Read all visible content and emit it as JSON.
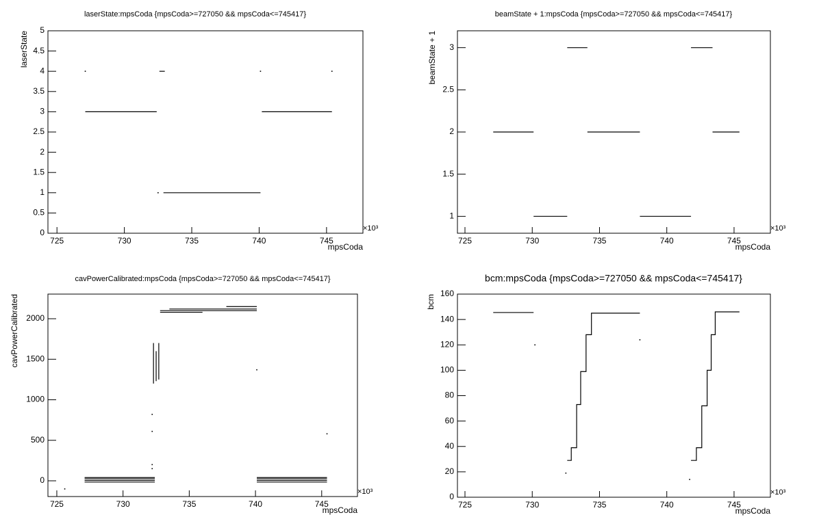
{
  "chart_data": [
    {
      "type": "line",
      "title": "laserState:mpsCoda {mpsCoda>=727050 && mpsCoda<=745417}",
      "x_label": "mpsCoda",
      "y_label": "laserState",
      "x_multiplier": "×10³",
      "color": "#000000",
      "x": [
        727.1,
        732.4,
        732.4,
        732.5,
        732.5,
        732.6,
        733.0,
        733.0,
        732.9,
        740.1,
        740.1,
        740.2,
        745.4,
        745.4,
        727.1,
        727.1,
        740.1,
        740.1,
        745.4
      ],
      "values": [
        3,
        3,
        null,
        1,
        null,
        4,
        4,
        null,
        1,
        1,
        null,
        3,
        3,
        null,
        4,
        null,
        4,
        null,
        4
      ],
      "xlim": [
        724.33,
        747.7
      ],
      "ylim": [
        0,
        5
      ],
      "xticks": [
        725,
        730,
        735,
        740,
        745
      ],
      "yticks": [
        0,
        0.5,
        1,
        1.5,
        2,
        2.5,
        3,
        3.5,
        4,
        4.5,
        5
      ]
    },
    {
      "type": "line",
      "title": "beamState + 1:mpsCoda {mpsCoda>=727050 && mpsCoda<=745417}",
      "x_label": "mpsCoda",
      "y_label": "beamState + 1",
      "x_multiplier": "×10³",
      "color": "#000000",
      "x": [
        727.1,
        730.1,
        730.1,
        730.1,
        732.6,
        732.6,
        732.6,
        734.1,
        734.1,
        734.1,
        738.0,
        738.0,
        738.0,
        741.8,
        741.8,
        741.8,
        743.4,
        743.4,
        743.4,
        745.4
      ],
      "values": [
        2,
        2,
        null,
        1,
        1,
        null,
        3,
        3,
        null,
        2,
        2,
        null,
        1,
        1,
        null,
        3,
        3,
        null,
        2,
        2
      ],
      "xlim": [
        724.44,
        747.7
      ],
      "ylim": [
        0.8,
        3.2
      ],
      "xticks": [
        725,
        730,
        735,
        740,
        745
      ],
      "yticks": [
        1,
        1.5,
        2,
        2.5,
        3
      ]
    },
    {
      "type": "line",
      "title": "cavPowerCalibrated:mpsCoda {mpsCoda>=727050 && mpsCoda<=745417}",
      "x_label": "mpsCoda",
      "y_label": "cavPowerCalibrated",
      "x_multiplier": "×10³",
      "color": "#000000",
      "x": [
        727.1,
        732.4,
        732.4,
        727.1,
        732.4,
        732.4,
        727.1,
        732.4,
        732.4,
        727.1,
        732.4,
        732.4,
        740.1,
        745.4,
        745.4,
        740.1,
        745.4,
        745.4,
        740.1,
        745.4,
        745.4,
        740.1,
        745.4,
        745.4,
        732.8,
        736,
        736,
        732.8,
        740.1,
        740.1,
        733.5,
        740.1,
        740.1,
        737.8,
        740.1,
        740.1,
        732.3,
        732.3,
        732.3,
        732.5,
        732.5,
        732.5,
        732.7,
        732.7,
        732.7,
        732.2,
        732.2,
        732.2,
        732.2,
        732.2,
        732.2,
        732.2,
        732.2,
        740.1,
        740.1,
        745.4,
        745.4,
        725.6
      ],
      "values": [
        -15,
        -15,
        null,
        5,
        5,
        null,
        25,
        25,
        null,
        40,
        40,
        null,
        -15,
        -15,
        null,
        5,
        5,
        null,
        25,
        25,
        null,
        40,
        40,
        null,
        2080,
        2080,
        null,
        2100,
        2100,
        null,
        2120,
        2120,
        null,
        2150,
        2150,
        null,
        1200,
        1700,
        null,
        1230,
        1600,
        null,
        1250,
        1700,
        null,
        820,
        null,
        610,
        null,
        200,
        null,
        150,
        null,
        1370,
        null,
        580,
        null,
        -100
      ],
      "xlim": [
        724.33,
        747.7
      ],
      "ylim": [
        -194,
        2304
      ],
      "xticks": [
        725,
        730,
        735,
        740,
        745
      ],
      "yticks": [
        0,
        500,
        1000,
        1500,
        2000
      ]
    },
    {
      "type": "line",
      "title": "bcm:mpsCoda {mpsCoda>=727050 && mpsCoda<=745417}",
      "x_label": "mpsCoda",
      "y_label": "bcm",
      "x_multiplier": "×10³",
      "color": "#000000",
      "x": [
        727.1,
        730.1,
        730.1,
        730.2,
        730.2,
        732.5,
        732.5,
        732.6,
        732.9,
        732.9,
        733.3,
        733.3,
        733.6,
        733.6,
        734,
        734,
        734.4,
        734.4,
        738,
        738,
        738,
        738,
        741.7,
        741.7,
        741.8,
        742.2,
        742.2,
        742.6,
        742.6,
        743,
        743,
        743.3,
        743.3,
        743.6,
        743.6,
        745.4
      ],
      "values": [
        145.5,
        145.5,
        null,
        120,
        null,
        19,
        null,
        29,
        29,
        39,
        39,
        73,
        73,
        99,
        99,
        128,
        128,
        145,
        145,
        null,
        124,
        null,
        14,
        null,
        29,
        29,
        39,
        39,
        72,
        72,
        100,
        100,
        128,
        128,
        146,
        146
      ],
      "xlim": [
        724.44,
        747.7
      ],
      "ylim": [
        0,
        160
      ],
      "xticks": [
        725,
        730,
        735,
        740,
        745
      ],
      "yticks": [
        0,
        20,
        40,
        60,
        80,
        100,
        120,
        140,
        160
      ]
    }
  ]
}
